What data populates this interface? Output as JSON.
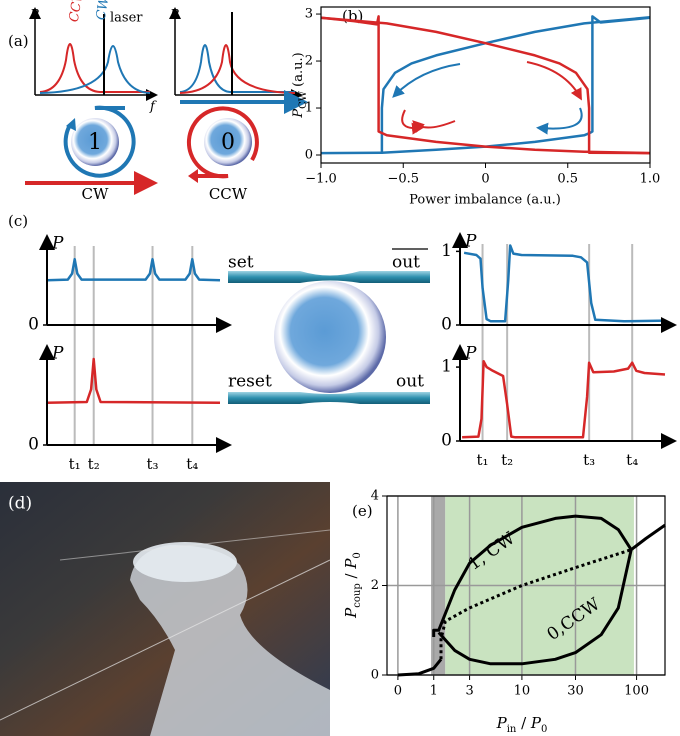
{
  "panel_labels": [
    "(a)",
    "(b)",
    "(c)",
    "(d)",
    "(e)"
  ],
  "diagram_a": {
    "p_left": "P",
    "p_right": "P",
    "ccw_peak": "CCW",
    "cw_peak": "CW",
    "laser": "laser",
    "f": "f",
    "ring_left": "1",
    "ring_right": "0",
    "bottom_left": "CW",
    "bottom_right": "CCW"
  },
  "diagram_c": {
    "set": "set",
    "out_bar": "out",
    "reset": "reset",
    "out": "out"
  },
  "chart_data": [
    {
      "type": "line",
      "ylabel": [
        "P",
        "CW",
        " (a.u.)"
      ],
      "xlabel": "Power imbalance (a.u.)",
      "xlim": [
        -1,
        1
      ],
      "ylim": [
        -0.17,
        3.15
      ],
      "xticks": [
        {
          "value": -1,
          "label": "−1.0"
        },
        {
          "value": -0.5,
          "label": "−0.5"
        },
        0,
        0.5,
        {
          "value": 1,
          "label": "1.0"
        }
      ],
      "yticks": [
        0,
        1,
        2,
        3
      ],
      "series": [
        {
          "color": "#1f77b4",
          "x": [
            -1,
            -0.64,
            -0.63,
            -0.63,
            -0.62,
            -0.55,
            -0.45,
            -0.3,
            0,
            0.3,
            0.6,
            1
          ],
          "values": [
            0.04,
            0.05,
            0.05,
            1.0,
            1.4,
            1.75,
            1.95,
            2.12,
            2.38,
            2.62,
            2.8,
            2.93
          ]
        },
        {
          "color": "#1f77b4",
          "x": [
            -0.63,
            -0.3,
            0,
            0.3,
            0.6,
            0.64,
            0.65,
            0.65,
            0.7,
            1
          ],
          "values": [
            0.05,
            0.11,
            0.18,
            0.28,
            0.42,
            0.48,
            0.5,
            2.95,
            2.82,
            2.92
          ]
        },
        {
          "color": "#d62728",
          "x": [
            -1,
            -0.8,
            -0.66,
            -0.65,
            -0.65,
            -0.6,
            -0.3,
            0,
            0.3,
            0.6,
            1
          ],
          "values": [
            2.92,
            2.85,
            2.78,
            2.95,
            0.5,
            0.42,
            0.28,
            0.18,
            0.11,
            0.07,
            0.04
          ]
        },
        {
          "color": "#d62728",
          "x": [
            -1,
            -0.6,
            -0.3,
            0,
            0.3,
            0.45,
            0.55,
            0.62,
            0.63,
            0.63,
            1
          ],
          "values": [
            2.92,
            2.8,
            2.62,
            2.38,
            2.12,
            1.95,
            1.75,
            1.4,
            1.0,
            0.05,
            0.04
          ]
        }
      ]
    },
    {
      "type": "line",
      "xscale": "log1p",
      "ylabel": [
        "P",
        "coup",
        " / ",
        "P",
        "0"
      ],
      "xlabel": [
        "P",
        "in",
        " / ",
        "P",
        "0"
      ],
      "xlim": [
        -0.19,
        174
      ],
      "ylim": [
        0,
        4
      ],
      "xticks": [
        0,
        1,
        3,
        10,
        30,
        100
      ],
      "yticks": [
        0,
        2,
        4
      ],
      "grid": true,
      "regions": [
        {
          "from": 0.9,
          "to": 1.5,
          "color": "#a9a9a9"
        },
        {
          "from": 1.5,
          "to": 95,
          "color": "#c9e3c0"
        }
      ],
      "annotations": [
        "1, CW",
        "0,CCW"
      ],
      "series": [
        {
          "color": "#000000",
          "linestyle": "solid",
          "x": [
            0,
            0.5,
            1,
            1.3
          ],
          "values": [
            0,
            0.03,
            0.15,
            0.35
          ]
        },
        {
          "color": "#000000",
          "linestyle": "solid",
          "x": [
            1,
            1,
            1.2,
            2,
            3,
            5,
            10,
            20,
            30,
            50,
            70,
            90
          ],
          "values": [
            0.85,
            1.0,
            1.0,
            1.9,
            2.5,
            2.9,
            3.3,
            3.5,
            3.55,
            3.5,
            3.25,
            2.8
          ]
        },
        {
          "color": "#000000",
          "linestyle": "solid",
          "x": [
            1.2,
            2,
            3,
            5,
            10,
            20,
            30,
            50,
            70,
            90,
            120,
            174
          ],
          "values": [
            0.95,
            0.55,
            0.35,
            0.25,
            0.25,
            0.35,
            0.5,
            0.9,
            1.5,
            2.8,
            3.05,
            3.35
          ]
        },
        {
          "color": "#000000",
          "linestyle": "dotted",
          "x": [
            1.3,
            1.3,
            1.5,
            3,
            10,
            30,
            90
          ],
          "values": [
            0.35,
            0.8,
            1.2,
            1.5,
            2.0,
            2.4,
            2.8
          ]
        }
      ]
    },
    {
      "type": "traces",
      "xlim": [
        0,
        10
      ],
      "xticks": [
        {
          "value": 1.6,
          "label": "t₁"
        },
        {
          "value": 2.7,
          "label": "t₂"
        },
        {
          "value": 6.1,
          "label": "t₃"
        },
        {
          "value": 8.4,
          "label": "t₄"
        }
      ],
      "panels": [
        {
          "ylabel": "P",
          "ylim": [
            0,
            1.2
          ],
          "yticks": [
            0
          ],
          "series": [
            {
              "color": "#1f77b4",
              "x": [
                0,
                1.2,
                1.45,
                1.6,
                1.75,
                2.0,
                5.7,
                5.95,
                6.1,
                6.25,
                6.5,
                8.0,
                8.25,
                8.4,
                8.55,
                8.8,
                10
              ],
              "values": [
                0.68,
                0.69,
                0.78,
                1.0,
                0.78,
                0.69,
                0.69,
                0.78,
                1.0,
                0.78,
                0.69,
                0.69,
                0.78,
                1.0,
                0.78,
                0.69,
                0.68
              ]
            }
          ]
        },
        {
          "ylabel": "P",
          "ylim": [
            0,
            1.2
          ],
          "yticks": [
            0
          ],
          "series": [
            {
              "color": "#d62728",
              "x": [
                0,
                2.3,
                2.55,
                2.7,
                2.85,
                3.1,
                10
              ],
              "values": [
                0.57,
                0.58,
                0.75,
                1.16,
                0.75,
                0.58,
                0.57
              ]
            }
          ]
        }
      ]
    },
    {
      "type": "traces",
      "xlim": [
        0,
        10
      ],
      "xticks": [
        {
          "value": 1.1,
          "label": "t₁"
        },
        {
          "value": 2.3,
          "label": "t₂"
        },
        {
          "value": 6.3,
          "label": "t₃"
        },
        {
          "value": 8.4,
          "label": "t₄"
        }
      ],
      "panels": [
        {
          "ylabel": "P",
          "ylim": [
            0,
            1.1
          ],
          "yticks": [
            0,
            1
          ],
          "series": [
            {
              "color": "#1f77b4",
              "x": [
                0.2,
                0.8,
                1.0,
                1.1,
                1.3,
                1.5,
                2.2,
                2.35,
                2.45,
                2.6,
                3.0,
                5.5,
                5.9,
                6.2,
                6.4,
                6.6,
                8,
                10
              ],
              "values": [
                0.98,
                0.95,
                0.9,
                0.5,
                0.08,
                0.05,
                0.05,
                0.6,
                1.08,
                0.97,
                0.95,
                0.94,
                0.92,
                0.85,
                0.3,
                0.07,
                0.05,
                0.06
              ]
            }
          ]
        },
        {
          "ylabel": "P",
          "ylim": [
            0,
            1.15
          ],
          "yticks": [
            0,
            1
          ],
          "series": [
            {
              "color": "#d62728",
              "x": [
                0.1,
                0.9,
                1.05,
                1.15,
                1.3,
                1.6,
                2.1,
                2.3,
                2.5,
                2.7,
                6.0,
                6.2,
                6.3,
                6.5,
                7.5,
                8.2,
                8.4,
                8.6,
                9,
                10
              ],
              "values": [
                0.05,
                0.06,
                0.3,
                1.08,
                1.0,
                0.95,
                0.88,
                0.5,
                0.06,
                0.05,
                0.05,
                0.6,
                1.06,
                0.93,
                0.94,
                0.98,
                1.06,
                0.95,
                0.92,
                0.9
              ]
            }
          ]
        }
      ]
    }
  ]
}
